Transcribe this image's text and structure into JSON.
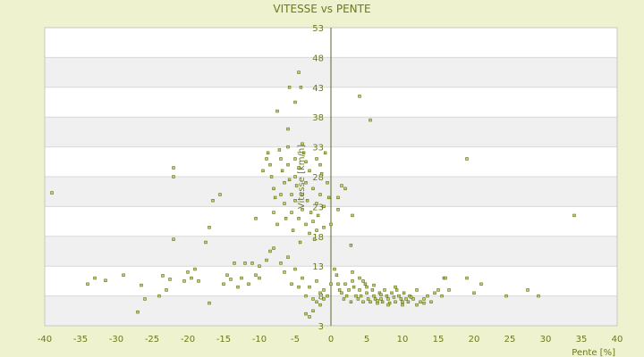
{
  "chart_data": {
    "type": "scatter",
    "title": "VITESSE vs PENTE",
    "xlabel": "Pente [%]",
    "ylabel": "Vitesse [km/h]",
    "xlim": [
      -40,
      40
    ],
    "ylim": [
      3,
      53
    ],
    "x_ticks": [
      -40,
      -35,
      -30,
      -25,
      -20,
      -15,
      -10,
      -5,
      0,
      5,
      10,
      15,
      20,
      25,
      30,
      35,
      40
    ],
    "y_ticks": [
      3,
      8,
      13,
      18,
      23,
      28,
      33,
      38,
      43,
      48,
      53
    ],
    "grid": true,
    "legend": "none",
    "colors": {
      "background": "#eef2cf",
      "plot": "#ffffff",
      "band": "#f0f0f0",
      "text": "#6a7a1c",
      "marker": "#556b1f"
    },
    "series": [
      {
        "points": [
          [
            -39,
            25.3
          ],
          [
            -34,
            10
          ],
          [
            -33,
            11
          ],
          [
            -31.5,
            10.6
          ],
          [
            -29,
            11.5
          ],
          [
            -27,
            5.3
          ],
          [
            -26.5,
            9.8
          ],
          [
            -26,
            7.5
          ],
          [
            -24,
            8
          ],
          [
            -23.5,
            11.4
          ],
          [
            -23,
            9
          ],
          [
            -22.5,
            10.8
          ],
          [
            -22,
            29.5
          ],
          [
            -22,
            28
          ],
          [
            -22,
            17.5
          ],
          [
            -20.5,
            10.5
          ],
          [
            -20,
            12
          ],
          [
            -19.5,
            11
          ],
          [
            -19,
            12.5
          ],
          [
            -18.5,
            10.5
          ],
          [
            -17.5,
            17
          ],
          [
            -17,
            19.5
          ],
          [
            -17,
            6.8
          ],
          [
            -16.5,
            24
          ],
          [
            -15.5,
            25
          ],
          [
            -15,
            10
          ],
          [
            -14.5,
            11.5
          ],
          [
            -14,
            10.8
          ],
          [
            -13.5,
            13.5
          ],
          [
            -13,
            9.5
          ],
          [
            -12.5,
            11
          ],
          [
            -12,
            13.5
          ],
          [
            -11.5,
            10
          ],
          [
            -11,
            13.5
          ],
          [
            -10.5,
            21
          ],
          [
            -10.5,
            11.5
          ],
          [
            -10,
            13
          ],
          [
            -10,
            11
          ],
          [
            -9.5,
            29
          ],
          [
            -9,
            31
          ],
          [
            -8.8,
            32
          ],
          [
            -8.5,
            30
          ],
          [
            -8.3,
            28
          ],
          [
            -8,
            26
          ],
          [
            -8,
            22
          ],
          [
            -7.8,
            24.5
          ],
          [
            -7.5,
            20
          ],
          [
            -7.2,
            32.5
          ],
          [
            -7,
            31
          ],
          [
            -7,
            25
          ],
          [
            -6.8,
            29
          ],
          [
            -6.5,
            27
          ],
          [
            -6.5,
            23.5
          ],
          [
            -6.3,
            21
          ],
          [
            -6,
            33
          ],
          [
            -6,
            30
          ],
          [
            -5.8,
            27.5
          ],
          [
            -5.5,
            25
          ],
          [
            -5.5,
            22
          ],
          [
            -5.3,
            19
          ],
          [
            -5,
            31
          ],
          [
            -5,
            28
          ],
          [
            -5,
            24
          ],
          [
            -4.8,
            26.5
          ],
          [
            -4.5,
            29.5
          ],
          [
            -4.5,
            21
          ],
          [
            -4.3,
            17
          ],
          [
            -4,
            25
          ],
          [
            -4,
            22.5
          ],
          [
            -3.8,
            32
          ],
          [
            -3.5,
            27
          ],
          [
            -3.5,
            20
          ],
          [
            -3.3,
            24
          ],
          [
            -3,
            18.5
          ],
          [
            -3,
            29
          ],
          [
            -2.8,
            22
          ],
          [
            -2.5,
            26
          ],
          [
            -2.5,
            20.5
          ],
          [
            -2.3,
            17.5
          ],
          [
            -2,
            23.5
          ],
          [
            -2,
            19
          ],
          [
            -1.8,
            21.5
          ],
          [
            -1.5,
            25
          ],
          [
            -1.3,
            28.5
          ],
          [
            -1,
            23
          ],
          [
            -1,
            19.5
          ],
          [
            -0.8,
            32
          ],
          [
            -0.5,
            27
          ],
          [
            -0.3,
            24.5
          ],
          [
            0,
            20
          ],
          [
            -4.5,
            45.5
          ],
          [
            -4.2,
            43
          ],
          [
            -5.8,
            43
          ],
          [
            -7.5,
            39
          ],
          [
            -6,
            36
          ],
          [
            -5,
            40.5
          ],
          [
            -4,
            33.5
          ],
          [
            -3.5,
            30.5
          ],
          [
            -2,
            31
          ],
          [
            -1.5,
            30
          ],
          [
            -9,
            14
          ],
          [
            -8.5,
            15.5
          ],
          [
            -8,
            16
          ],
          [
            -7,
            13.5
          ],
          [
            -6.5,
            12
          ],
          [
            -6,
            14.5
          ],
          [
            -5.5,
            10
          ],
          [
            -5,
            12.5
          ],
          [
            -4.5,
            9.5
          ],
          [
            -4,
            11
          ],
          [
            -3.5,
            8
          ],
          [
            -3,
            9.5
          ],
          [
            -2.5,
            7.5
          ],
          [
            -2,
            10.5
          ],
          [
            -1.5,
            8.5
          ],
          [
            -1,
            9
          ],
          [
            -0.5,
            8
          ],
          [
            0,
            10
          ],
          [
            -3.5,
            5
          ],
          [
            -3,
            4.5
          ],
          [
            -2.5,
            5.5
          ],
          [
            -2,
            7
          ],
          [
            -1.5,
            6.5
          ],
          [
            -1,
            7.5
          ],
          [
            1,
            24.5
          ],
          [
            1.5,
            26.5
          ],
          [
            2,
            26
          ],
          [
            1,
            22.5
          ],
          [
            0.5,
            12.5
          ],
          [
            0.8,
            11.5
          ],
          [
            1,
            10
          ],
          [
            1.2,
            9
          ],
          [
            1.5,
            8.5
          ],
          [
            1.8,
            7.5
          ],
          [
            2,
            10
          ],
          [
            2.2,
            8
          ],
          [
            2.5,
            9
          ],
          [
            2.8,
            7
          ],
          [
            3,
            12
          ],
          [
            3,
            10.5
          ],
          [
            3.2,
            9.5
          ],
          [
            3.5,
            8
          ],
          [
            3.8,
            7.5
          ],
          [
            4,
            11
          ],
          [
            4,
            9
          ],
          [
            4.2,
            8
          ],
          [
            4.5,
            7
          ],
          [
            4.8,
            10
          ],
          [
            5,
            9.5
          ],
          [
            5,
            8.5
          ],
          [
            5.2,
            7.5
          ],
          [
            5.5,
            7
          ],
          [
            5.8,
            9
          ],
          [
            6,
            8
          ],
          [
            6.2,
            7.5
          ],
          [
            6.5,
            6.8
          ],
          [
            6.8,
            8.5
          ],
          [
            7,
            7.5
          ],
          [
            7.2,
            7
          ],
          [
            7.5,
            9
          ],
          [
            7.8,
            8
          ],
          [
            8,
            7.5
          ],
          [
            8.2,
            6.8
          ],
          [
            8.5,
            8.5
          ],
          [
            8.8,
            7.8
          ],
          [
            9,
            7
          ],
          [
            9.2,
            9
          ],
          [
            9.5,
            8
          ],
          [
            9.8,
            7.5
          ],
          [
            10,
            7
          ],
          [
            10.2,
            8.5
          ],
          [
            10.5,
            7.5
          ],
          [
            10.8,
            7
          ],
          [
            11,
            8
          ],
          [
            11.5,
            7.5
          ],
          [
            12,
            9
          ],
          [
            12.5,
            7
          ],
          [
            13,
            7.5
          ],
          [
            13.5,
            8
          ],
          [
            14,
            7
          ],
          [
            14.5,
            8.5
          ],
          [
            15,
            9
          ],
          [
            15.5,
            8
          ],
          [
            15.8,
            11
          ],
          [
            16,
            11
          ],
          [
            16.5,
            9
          ],
          [
            19,
            11
          ],
          [
            19,
            31
          ],
          [
            20,
            8.5
          ],
          [
            21,
            10
          ],
          [
            24.5,
            8
          ],
          [
            27.5,
            9
          ],
          [
            29,
            8
          ],
          [
            34,
            21.5
          ],
          [
            4,
            41.5
          ],
          [
            5.5,
            37.5
          ],
          [
            3,
            21.5
          ],
          [
            2.8,
            16.5
          ],
          [
            4.5,
            10.5
          ],
          [
            6,
            9.8
          ],
          [
            6.5,
            7.2
          ],
          [
            7,
            8.2
          ],
          [
            8,
            6.5
          ],
          [
            9,
            9.5
          ],
          [
            10,
            6.5
          ],
          [
            11.2,
            7.8
          ],
          [
            12,
            6.5
          ],
          [
            13,
            6.8
          ]
        ]
      }
    ]
  }
}
